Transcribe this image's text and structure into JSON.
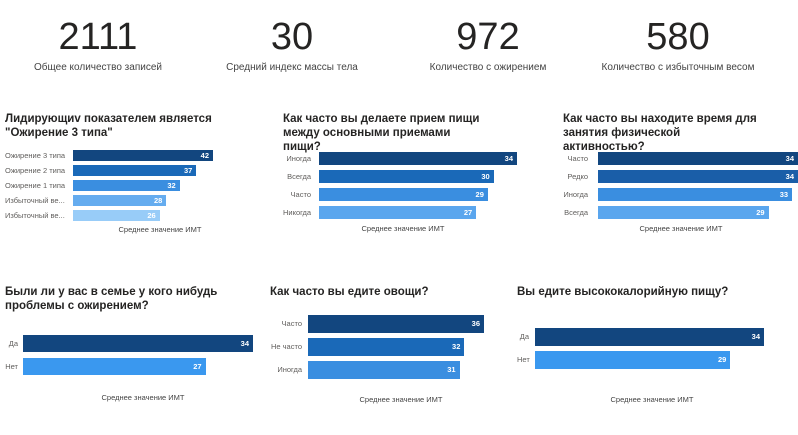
{
  "kpis": [
    {
      "value": "2111",
      "label": "Общее количество записей"
    },
    {
      "value": "30",
      "label": "Средний индекс массы тела"
    },
    {
      "value": "972",
      "label": "Количество с ожирением"
    },
    {
      "value": "580",
      "label": "Количество с избыточным весом"
    }
  ],
  "chart_data": [
    {
      "type": "bar",
      "title": "Лидирующиv показателем является \"Ожирение 3 типа\"",
      "categories": [
        "Ожирение 3 типа",
        "Ожирение 2 типа",
        "Ожирение 1 типа",
        "Избыточный ве...",
        "Избыточный ве..."
      ],
      "values": [
        42,
        37,
        32,
        28,
        26
      ],
      "xlabel": "Среднее значение ИМТ",
      "colors": [
        "#12467f",
        "#1a69b8",
        "#3a8ee0",
        "#65acef",
        "#98ccf8"
      ]
    },
    {
      "type": "bar",
      "title": "Как часто вы делаете прием пищи между основными приемами пищи?",
      "categories": [
        "Иногда",
        "Всегда",
        "Часто",
        "Никогда"
      ],
      "values": [
        34,
        30,
        29,
        27
      ],
      "xlabel": "Среднее значение ИМТ",
      "colors": [
        "#12467f",
        "#1a69b8",
        "#3a8ee0",
        "#5aa6ee"
      ]
    },
    {
      "type": "bar",
      "title": "Как часто вы находите время для занятия физической активностью?",
      "categories": [
        "Часто",
        "Редко",
        "Иногда",
        "Всегда"
      ],
      "values": [
        34,
        34,
        33,
        29
      ],
      "xlabel": "Среднее значение ИМТ",
      "colors": [
        "#12467f",
        "#1a5ea8",
        "#3a8ee0",
        "#5aa6ee"
      ]
    },
    {
      "type": "bar",
      "title": "Были ли у вас в семье у кого нибудь проблемы с ожирением?",
      "categories": [
        "Да",
        "Нет"
      ],
      "values": [
        34,
        27
      ],
      "xlabel": "Среднее значение ИМТ",
      "colors": [
        "#12467f",
        "#3a98ef"
      ]
    },
    {
      "type": "bar",
      "title": "Как часто вы едите овощи?",
      "categories": [
        "Часто",
        "Не часто",
        "Иногда"
      ],
      "values": [
        36,
        32,
        31
      ],
      "xlabel": "Среднее значение ИМТ",
      "colors": [
        "#12467f",
        "#1a69b8",
        "#3a8ee0"
      ]
    },
    {
      "type": "bar",
      "title": "Вы едите высококалорийную пищу?",
      "categories": [
        "Да",
        "Нет"
      ],
      "values": [
        34,
        29
      ],
      "xlabel": "Среднее значение ИМТ",
      "colors": [
        "#12467f",
        "#3a98ef"
      ]
    }
  ]
}
